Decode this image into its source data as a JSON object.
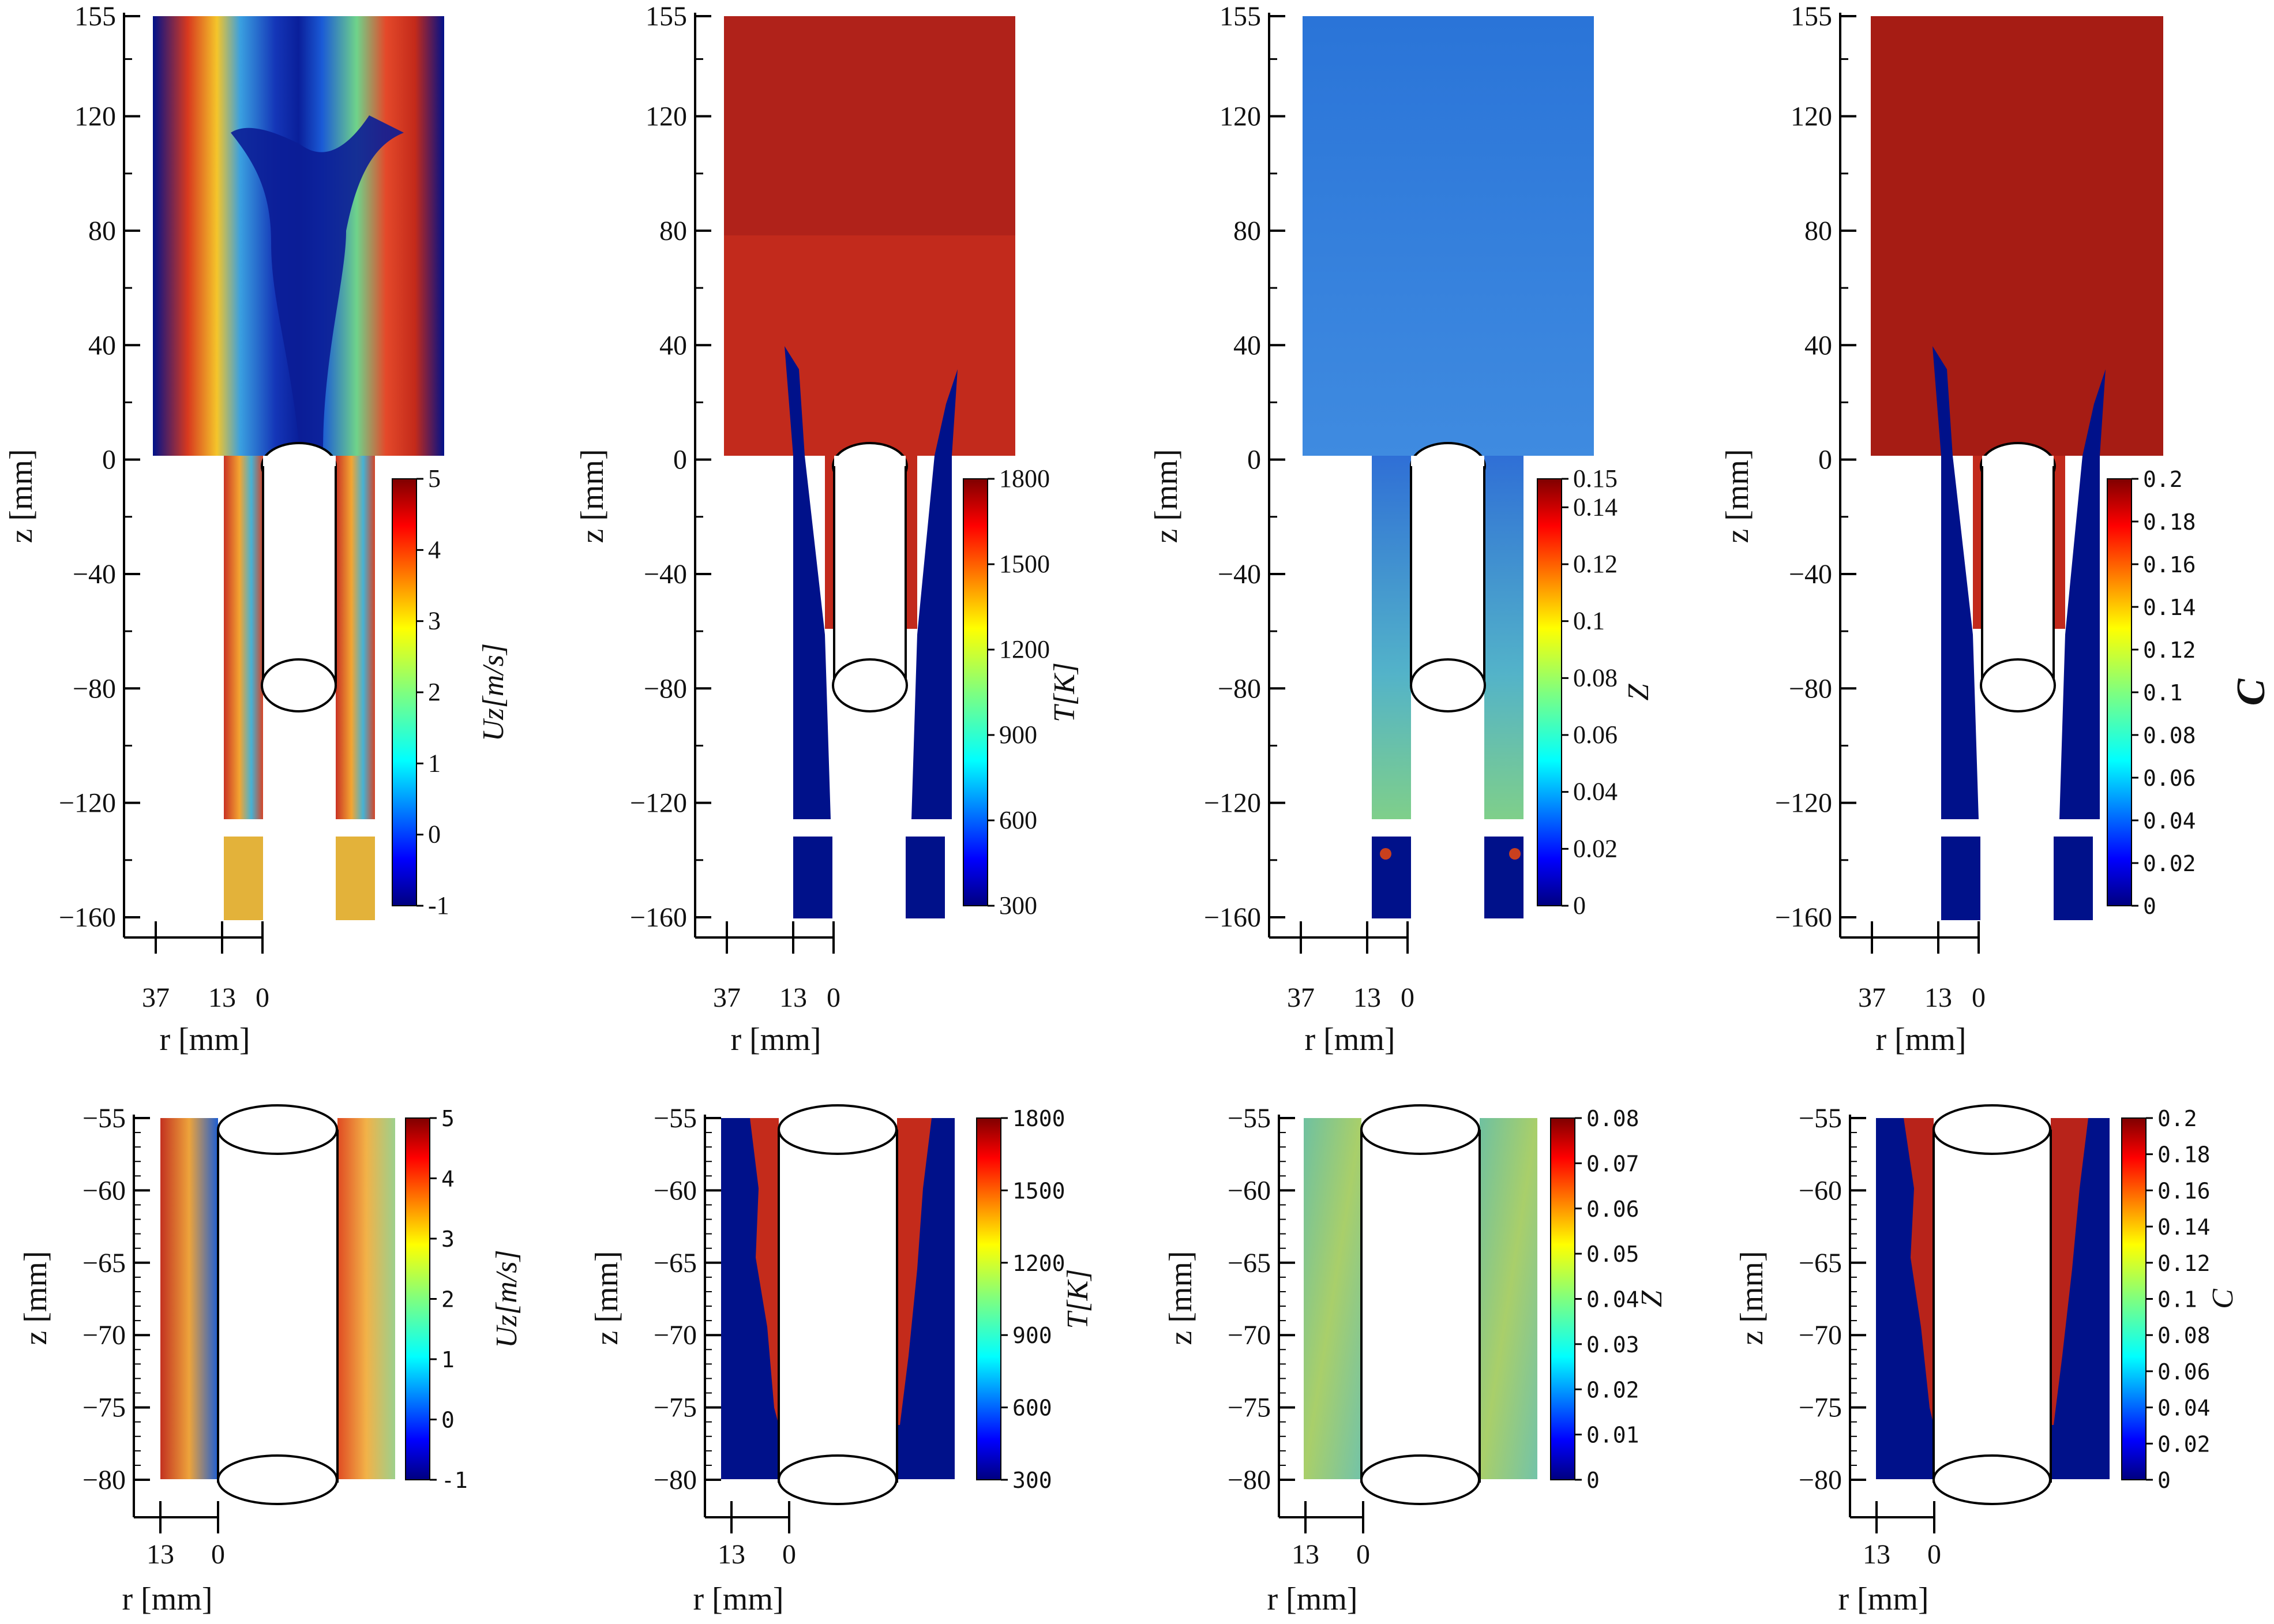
{
  "chart_data": [
    {
      "type": "heatmap",
      "row": "top",
      "panel": 1,
      "field": "axial velocity",
      "colorbar_title": "Uz[m/s]",
      "colorbar_range": [
        -1,
        5
      ],
      "colorbar_ticks": [
        "5",
        "4",
        "3",
        "2",
        "1",
        "0",
        "-1"
      ],
      "ylabel": "z [mm]",
      "xlabel": "r [mm]",
      "y_ticks": [
        "155",
        "120",
        "80",
        "40",
        "0",
        "−40",
        "−80",
        "−120",
        "−160"
      ],
      "x_ticks": [
        "37",
        "13",
        "0"
      ],
      "ylim": [
        -160,
        155
      ]
    },
    {
      "type": "heatmap",
      "row": "top",
      "panel": 2,
      "field": "temperature",
      "colorbar_title": "T[K]",
      "colorbar_range": [
        300,
        1800
      ],
      "colorbar_ticks": [
        "1800",
        "1500",
        "1200",
        "900",
        "600",
        "300"
      ],
      "ylabel": "z [mm]",
      "xlabel": "r [mm]",
      "y_ticks": [
        "155",
        "120",
        "80",
        "40",
        "0",
        "−40",
        "−80",
        "−120",
        "−160"
      ],
      "x_ticks": [
        "37",
        "13",
        "0"
      ],
      "ylim": [
        -160,
        155
      ]
    },
    {
      "type": "heatmap",
      "row": "top",
      "panel": 3,
      "field": "mixture fraction",
      "colorbar_title": "Z",
      "colorbar_range": [
        0,
        0.15
      ],
      "colorbar_ticks": [
        "0.15",
        "0.14",
        "0.12",
        "0.1",
        "0.08",
        "0.06",
        "0.04",
        "0.02",
        "0"
      ],
      "ylabel": "z [mm]",
      "xlabel": "r [mm]",
      "y_ticks": [
        "155",
        "120",
        "80",
        "40",
        "0",
        "−40",
        "−80",
        "−120",
        "−160"
      ],
      "x_ticks": [
        "37",
        "13",
        "0"
      ],
      "ylim": [
        -160,
        155
      ]
    },
    {
      "type": "heatmap",
      "row": "top",
      "panel": 4,
      "field": "progress variable",
      "colorbar_title": "C",
      "colorbar_range": [
        0,
        0.2
      ],
      "colorbar_ticks": [
        "0.2",
        "0.18",
        "0.16",
        "0.14",
        "0.12",
        "0.1",
        "0.08",
        "0.06",
        "0.04",
        "0.02",
        "0"
      ],
      "ylabel": "z [mm]",
      "xlabel": "r [mm]",
      "y_ticks": [
        "155",
        "120",
        "80",
        "40",
        "0",
        "−40",
        "−80",
        "−120",
        "−160"
      ],
      "x_ticks": [
        "37",
        "13",
        "0"
      ],
      "ylim": [
        -160,
        155
      ]
    },
    {
      "type": "heatmap",
      "row": "bottom",
      "panel": 1,
      "field": "axial velocity",
      "colorbar_title": "Uz[m/s]",
      "colorbar_range": [
        -1,
        5
      ],
      "colorbar_ticks": [
        "5",
        "4",
        "3",
        "2",
        "1",
        "0",
        "-1"
      ],
      "ylabel": "z [mm]",
      "xlabel": "r [mm]",
      "y_ticks": [
        "−55",
        "−60",
        "−65",
        "−70",
        "−75",
        "−80"
      ],
      "x_ticks": [
        "13",
        "0"
      ],
      "ylim": [
        -80,
        -55
      ]
    },
    {
      "type": "heatmap",
      "row": "bottom",
      "panel": 2,
      "field": "temperature",
      "colorbar_title": "T[K]",
      "colorbar_range": [
        300,
        1800
      ],
      "colorbar_ticks": [
        "1800",
        "1500",
        "1200",
        "900",
        "600",
        "300"
      ],
      "ylabel": "z [mm]",
      "xlabel": "r [mm]",
      "y_ticks": [
        "−55",
        "−60",
        "−65",
        "−70",
        "−75",
        "−80"
      ],
      "x_ticks": [
        "13",
        "0"
      ],
      "ylim": [
        -80,
        -55
      ]
    },
    {
      "type": "heatmap",
      "row": "bottom",
      "panel": 3,
      "field": "mixture fraction",
      "colorbar_title": "Z",
      "colorbar_range": [
        0,
        0.08
      ],
      "colorbar_ticks": [
        "0.08",
        "0.07",
        "0.06",
        "0.05",
        "0.04",
        "0.03",
        "0.02",
        "0.01",
        "0"
      ],
      "ylabel": "z [mm]",
      "xlabel": "r [mm]",
      "y_ticks": [
        "−55",
        "−60",
        "−65",
        "−70",
        "−75",
        "−80"
      ],
      "x_ticks": [
        "13",
        "0"
      ],
      "ylim": [
        -80,
        -55
      ]
    },
    {
      "type": "heatmap",
      "row": "bottom",
      "panel": 4,
      "field": "progress variable",
      "colorbar_title": "C",
      "colorbar_range": [
        0,
        0.2
      ],
      "colorbar_ticks": [
        "0.2",
        "0.18",
        "0.16",
        "0.14",
        "0.12",
        "0.1",
        "0.08",
        "0.06",
        "0.04",
        "0.02",
        "0"
      ],
      "ylabel": "z [mm]",
      "xlabel": "r [mm]",
      "y_ticks": [
        "−55",
        "−60",
        "−65",
        "−70",
        "−75",
        "−80"
      ],
      "x_ticks": [
        "13",
        "0"
      ],
      "ylim": [
        -80,
        -55
      ]
    }
  ]
}
